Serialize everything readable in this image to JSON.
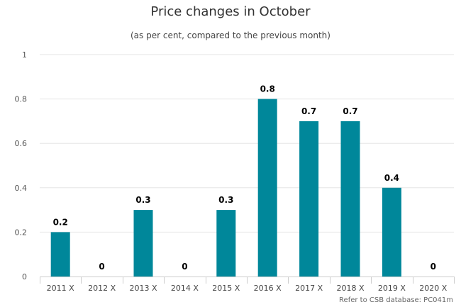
{
  "chart_data": {
    "type": "bar",
    "title": "Price changes in October",
    "subtitle": "(as per cent, compared to the previous month)",
    "categories": [
      "2011 X",
      "2012 X",
      "2013 X",
      "2014 X",
      "2015 X",
      "2016 X",
      "2017 X",
      "2018 X",
      "2019 X",
      "2020 X"
    ],
    "values": [
      0.2,
      0,
      0.3,
      0,
      0.3,
      0.8,
      0.7,
      0.7,
      0.4,
      0
    ],
    "data_labels": [
      "0.2",
      "0",
      "0.3",
      "0",
      "0.3",
      "0.8",
      "0.7",
      "0.7",
      "0.4",
      "0"
    ],
    "y_ticks": [
      "0",
      "0.2",
      "0.4",
      "0.6",
      "0.8",
      "1"
    ],
    "ylim": [
      0,
      1
    ],
    "xlabel": "",
    "ylabel": "",
    "grid": true,
    "bar_color": "#00879a"
  },
  "credit": "Refer to CSB database: PC041m"
}
